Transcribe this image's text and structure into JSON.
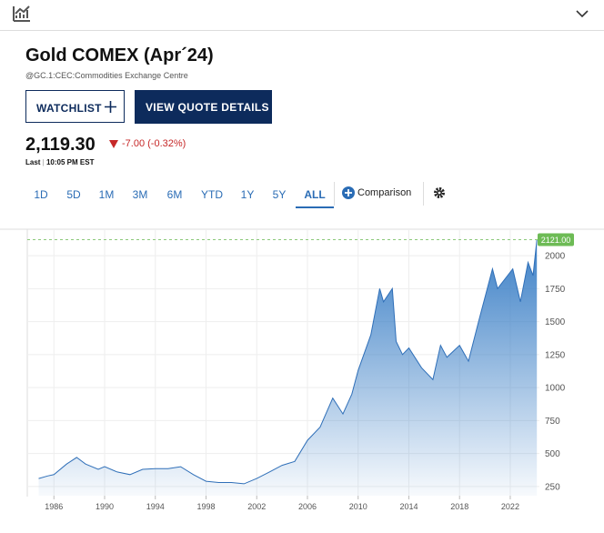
{
  "header": {
    "title": "Gold COMEX (Apr´24)",
    "symbol": "@GC.1:CEC:Commodities Exchange Centre",
    "watchlist_button": "WATCHLIST",
    "quote_button": "VIEW QUOTE DETAILS",
    "price": "2,119.30",
    "change": "-7.00 (-0.32%)",
    "last_label": "Last",
    "time": "10:05 PM EST"
  },
  "tabs": [
    {
      "label": "1D"
    },
    {
      "label": "5D"
    },
    {
      "label": "1M"
    },
    {
      "label": "3M"
    },
    {
      "label": "6M"
    },
    {
      "label": "YTD"
    },
    {
      "label": "1Y"
    },
    {
      "label": "5Y"
    },
    {
      "label": "ALL",
      "selected": true
    }
  ],
  "comparison": "Comparison",
  "chart_data": {
    "type": "area",
    "color": "#3b7fc6",
    "grid": true,
    "x": [
      1984.8,
      1985.5,
      1986,
      1987,
      1987.8,
      1988.5,
      1989.5,
      1990,
      1991,
      1992,
      1993,
      1994,
      1995,
      1996,
      1997,
      1998,
      1999,
      2000,
      2001,
      2002,
      2003,
      2004,
      2005,
      2006,
      2007,
      2008,
      2008.8,
      2009.5,
      2010,
      2011,
      2011.7,
      2012,
      2012.7,
      2013,
      2013.5,
      2014,
      2015,
      2015.9,
      2016.5,
      2017,
      2018,
      2018.7,
      2019.5,
      2020.6,
      2021,
      2022.2,
      2022.8,
      2023.4,
      2023.8,
      2024.1
    ],
    "values": [
      310,
      330,
      340,
      420,
      470,
      420,
      380,
      400,
      360,
      340,
      380,
      385,
      385,
      400,
      340,
      290,
      280,
      280,
      270,
      310,
      360,
      410,
      440,
      600,
      700,
      920,
      800,
      950,
      1130,
      1400,
      1750,
      1650,
      1750,
      1350,
      1250,
      1300,
      1150,
      1060,
      1320,
      1230,
      1320,
      1200,
      1500,
      1900,
      1750,
      1900,
      1650,
      1950,
      1850,
      2121
    ],
    "xlim": [
      1983.9,
      2024.3
    ],
    "ylim": [
      180,
      2180
    ],
    "xticks": [
      1986,
      1990,
      1994,
      1998,
      2002,
      2006,
      2010,
      2014,
      2018,
      2022
    ],
    "yticks": [
      250,
      500,
      750,
      1000,
      1250,
      1500,
      1750,
      2000
    ],
    "last_price": {
      "value": 2121,
      "label": "2121.00"
    }
  }
}
